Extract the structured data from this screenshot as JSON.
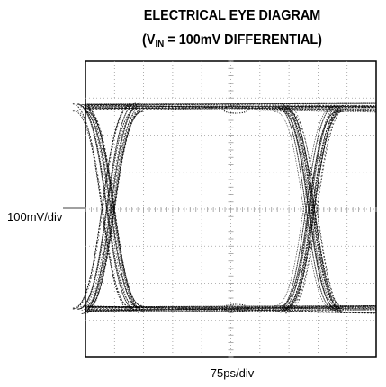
{
  "header": {
    "title": "ELECTRICAL EYE DIAGRAM",
    "subtitle": {
      "prefix": "(V",
      "subscript": "IN",
      "suffix": " = 100mV DIFFERENTIAL)"
    }
  },
  "axes": {
    "y_scale": "100mV/div",
    "x_scale": "75ps/div"
  }
}
